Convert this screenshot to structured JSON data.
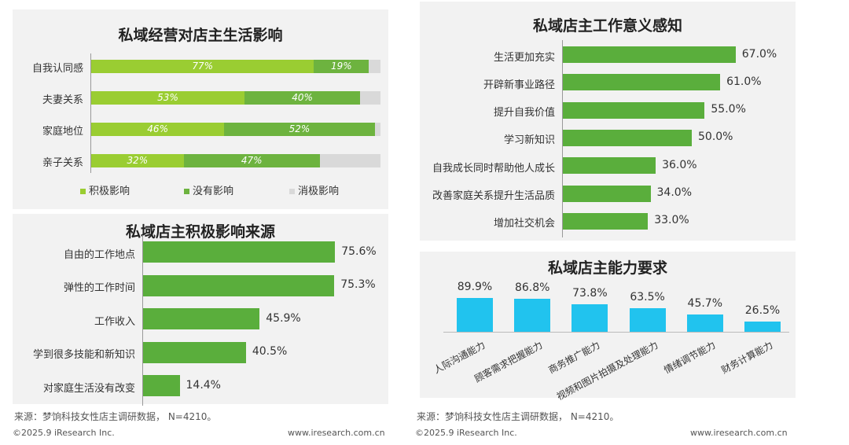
{
  "colors": {
    "positive": "#9acd32",
    "neutral": "#6db33f",
    "negative": "#d9d9d9",
    "green": "#5aae3c",
    "cyan": "#21c3ee"
  },
  "panel1": {
    "title": "私域经营对店主生活影响",
    "legend": [
      "积极影响",
      "没有影响",
      "消极影响"
    ]
  },
  "panel2": {
    "title": "私域店主积极影响来源"
  },
  "panel3": {
    "title": "私域店主工作意义感知"
  },
  "panel4": {
    "title": "私域店主能力要求"
  },
  "footer_left": {
    "source": "来源：梦饷科技女性店主调研数据， N=4210。",
    "copyright": "©2025.9 iResearch Inc.",
    "site": "www.iresearch.com.cn"
  },
  "footer_right": {
    "source": "来源：梦饷科技女性店主调研数据， N=4210。",
    "copyright": "©2025.9 iResearch Inc.",
    "site": "www.iresearch.com.cn"
  },
  "chart_data": [
    {
      "type": "bar",
      "orientation": "horizontal-stacked",
      "title": "私域经营对店主生活影响",
      "categories": [
        "自我认同感",
        "夫妻关系",
        "家庭地位",
        "亲子关系"
      ],
      "series": [
        {
          "name": "积极影响",
          "values": [
            77,
            53,
            46,
            32
          ],
          "labels": [
            "77%",
            "53%",
            "46%",
            "32%"
          ]
        },
        {
          "name": "没有影响",
          "values": [
            19,
            40,
            52,
            47
          ],
          "labels": [
            "19%",
            "40%",
            "52%",
            "47%"
          ]
        },
        {
          "name": "消极影响",
          "values": [
            4,
            7,
            2,
            21
          ]
        }
      ],
      "xlim": [
        0,
        100
      ]
    },
    {
      "type": "bar",
      "orientation": "horizontal",
      "title": "私域店主积极影响来源",
      "categories": [
        "自由的工作地点",
        "弹性的工作时间",
        "工作收入",
        "学到很多技能和新知识",
        "对家庭生活没有改变"
      ],
      "values": [
        75.6,
        75.3,
        45.9,
        40.5,
        14.4
      ],
      "labels": [
        "75.6%",
        "75.3%",
        "45.9%",
        "40.5%",
        "14.4%"
      ],
      "xlim": [
        0,
        100
      ]
    },
    {
      "type": "bar",
      "orientation": "horizontal",
      "title": "私域店主工作意义感知",
      "categories": [
        "生活更加充实",
        "开辟新事业路径",
        "提升自我价值",
        "学习新知识",
        "自我成长同时帮助他人成长",
        "改善家庭关系提升生活品质",
        "增加社交机会"
      ],
      "values": [
        67.0,
        61.0,
        55.0,
        50.0,
        36.0,
        34.0,
        33.0
      ],
      "labels": [
        "67.0%",
        "61.0%",
        "55.0%",
        "50.0%",
        "36.0%",
        "34.0%",
        "33.0%"
      ],
      "xlim": [
        0,
        100
      ]
    },
    {
      "type": "bar",
      "orientation": "vertical",
      "title": "私域店主能力要求",
      "categories": [
        "人际沟通能力",
        "顾客需求把握能力",
        "商务推广能力",
        "视频和图片拍摄及处理能力",
        "情绪调节能力",
        "财务计算能力"
      ],
      "values": [
        89.9,
        86.8,
        73.8,
        63.5,
        45.7,
        26.5
      ],
      "labels": [
        "89.9%",
        "86.8%",
        "73.8%",
        "63.5%",
        "45.7%",
        "26.5%"
      ],
      "ylim": [
        0,
        100
      ]
    }
  ]
}
